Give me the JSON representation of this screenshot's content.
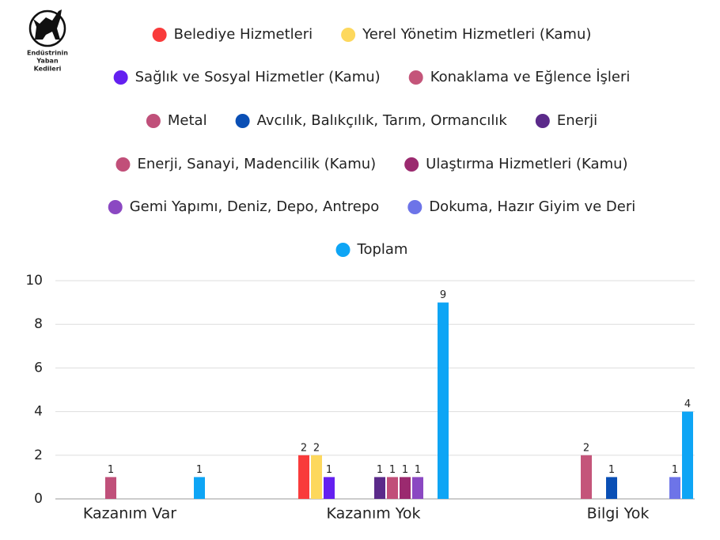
{
  "logo": {
    "lines": [
      "Endüstrinin",
      "Yaban",
      "Kedileri"
    ]
  },
  "chart_data": {
    "type": "bar",
    "categories": [
      "Kazanım Var",
      "Kazanım Yok",
      "Bilgi Yok"
    ],
    "series": [
      {
        "name": "Belediye Hizmetleri",
        "color": "#f93b3b",
        "values": [
          null,
          2,
          null
        ]
      },
      {
        "name": "Yerel Yönetim Hizmetleri (Kamu)",
        "color": "#fdd85d",
        "values": [
          null,
          2,
          null
        ]
      },
      {
        "name": "Sağlık ve Sosyal Hizmetler (Kamu)",
        "color": "#6420f0",
        "values": [
          null,
          1,
          null
        ]
      },
      {
        "name": "Konaklama ve Eğlence İşleri",
        "color": "#c4557a",
        "values": [
          null,
          null,
          2
        ]
      },
      {
        "name": "Metal",
        "color": "#c0507a",
        "values": [
          1,
          null,
          null
        ]
      },
      {
        "name": "Avcılık, Balıkçılık, Tarım, Ormancılık",
        "color": "#0a4fb5",
        "values": [
          null,
          null,
          1
        ]
      },
      {
        "name": "Enerji",
        "color": "#5b2a8a",
        "values": [
          null,
          1,
          null
        ]
      },
      {
        "name": "Enerji, Sanayi, Madencilik (Kamu)",
        "color": "#c14f79",
        "values": [
          null,
          1,
          null
        ]
      },
      {
        "name": "Ulaştırma Hizmetleri (Kamu)",
        "color": "#9b2a6f",
        "values": [
          null,
          1,
          null
        ]
      },
      {
        "name": "Gemi Yapımı, Deniz, Depo, Antrepo",
        "color": "#8b48c2",
        "values": [
          null,
          1,
          null
        ]
      },
      {
        "name": "Dokuma, Hazır Giyim ve Deri",
        "color": "#6d74e8",
        "values": [
          null,
          null,
          1
        ]
      },
      {
        "name": "Toplam",
        "color": "#0ea5f5",
        "values": [
          1,
          9,
          4
        ]
      }
    ],
    "ylim": [
      0,
      10
    ],
    "yticks": [
      0,
      2,
      4,
      6,
      8,
      10
    ],
    "grid": true,
    "legend": "top"
  }
}
